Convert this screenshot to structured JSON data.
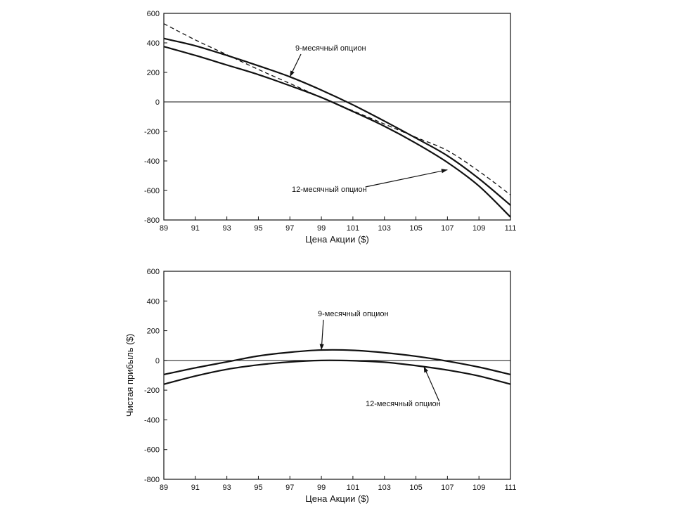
{
  "chart_data": [
    {
      "type": "line",
      "title": "",
      "xlabel": "Цена Акции ($)",
      "ylabel": "",
      "xlim": [
        89,
        111
      ],
      "ylim": [
        -800,
        600
      ],
      "xticks": [
        89,
        91,
        93,
        95,
        97,
        99,
        101,
        103,
        105,
        107,
        109,
        111
      ],
      "yticks": [
        600,
        400,
        200,
        0,
        -200,
        -400,
        -600,
        -800
      ],
      "grid": false,
      "zero_line": true,
      "series": [
        {
          "style": "solid",
          "x": [
            89,
            91,
            93,
            95,
            97,
            99,
            101,
            103,
            105,
            107,
            109,
            111
          ],
          "y": [
            430,
            380,
            315,
            245,
            170,
            80,
            -20,
            -130,
            -245,
            -365,
            -520,
            -700
          ]
        },
        {
          "style": "solid",
          "x": [
            89,
            91,
            93,
            95,
            97,
            99,
            101,
            103,
            105,
            107,
            109,
            111
          ],
          "y": [
            375,
            315,
            250,
            185,
            110,
            30,
            -65,
            -165,
            -280,
            -410,
            -570,
            -780
          ]
        },
        {
          "style": "dashed",
          "x": [
            89,
            91,
            93,
            95,
            97,
            99,
            101,
            103,
            105,
            107,
            109,
            111
          ],
          "y": [
            530,
            420,
            320,
            220,
            125,
            30,
            -60,
            -150,
            -240,
            -330,
            -470,
            -630
          ]
        }
      ],
      "annotations": [
        {
          "text": "9-месячный опцион",
          "point": [
            97,
            170
          ]
        },
        {
          "text": "12-месячный опцион",
          "point": [
            107,
            -460
          ]
        }
      ]
    },
    {
      "type": "line",
      "title": "",
      "xlabel": "Цена Акции ($)",
      "ylabel": "Чистая прибыль ($)",
      "xlim": [
        89,
        111
      ],
      "ylim": [
        -800,
        600
      ],
      "xticks": [
        89,
        91,
        93,
        95,
        97,
        99,
        101,
        103,
        105,
        107,
        109,
        111
      ],
      "yticks": [
        600,
        400,
        200,
        0,
        -200,
        -400,
        -600,
        -800
      ],
      "grid": false,
      "zero_line": true,
      "series": [
        {
          "style": "solid",
          "x": [
            89,
            91,
            93,
            95,
            97,
            99,
            101,
            103,
            105,
            107,
            109,
            111
          ],
          "y": [
            -95,
            -50,
            -10,
            30,
            55,
            70,
            68,
            52,
            28,
            -5,
            -45,
            -95
          ]
        },
        {
          "style": "solid",
          "x": [
            89,
            91,
            93,
            95,
            97,
            99,
            101,
            103,
            105,
            107,
            109,
            111
          ],
          "y": [
            -160,
            -105,
            -60,
            -30,
            -10,
            0,
            -2,
            -12,
            -35,
            -65,
            -105,
            -160
          ]
        }
      ],
      "annotations": [
        {
          "text": "9-месячный опцион",
          "point": [
            99,
            70
          ]
        },
        {
          "text": "12-месячный опцион",
          "point": [
            105.5,
            -40
          ]
        }
      ]
    }
  ]
}
